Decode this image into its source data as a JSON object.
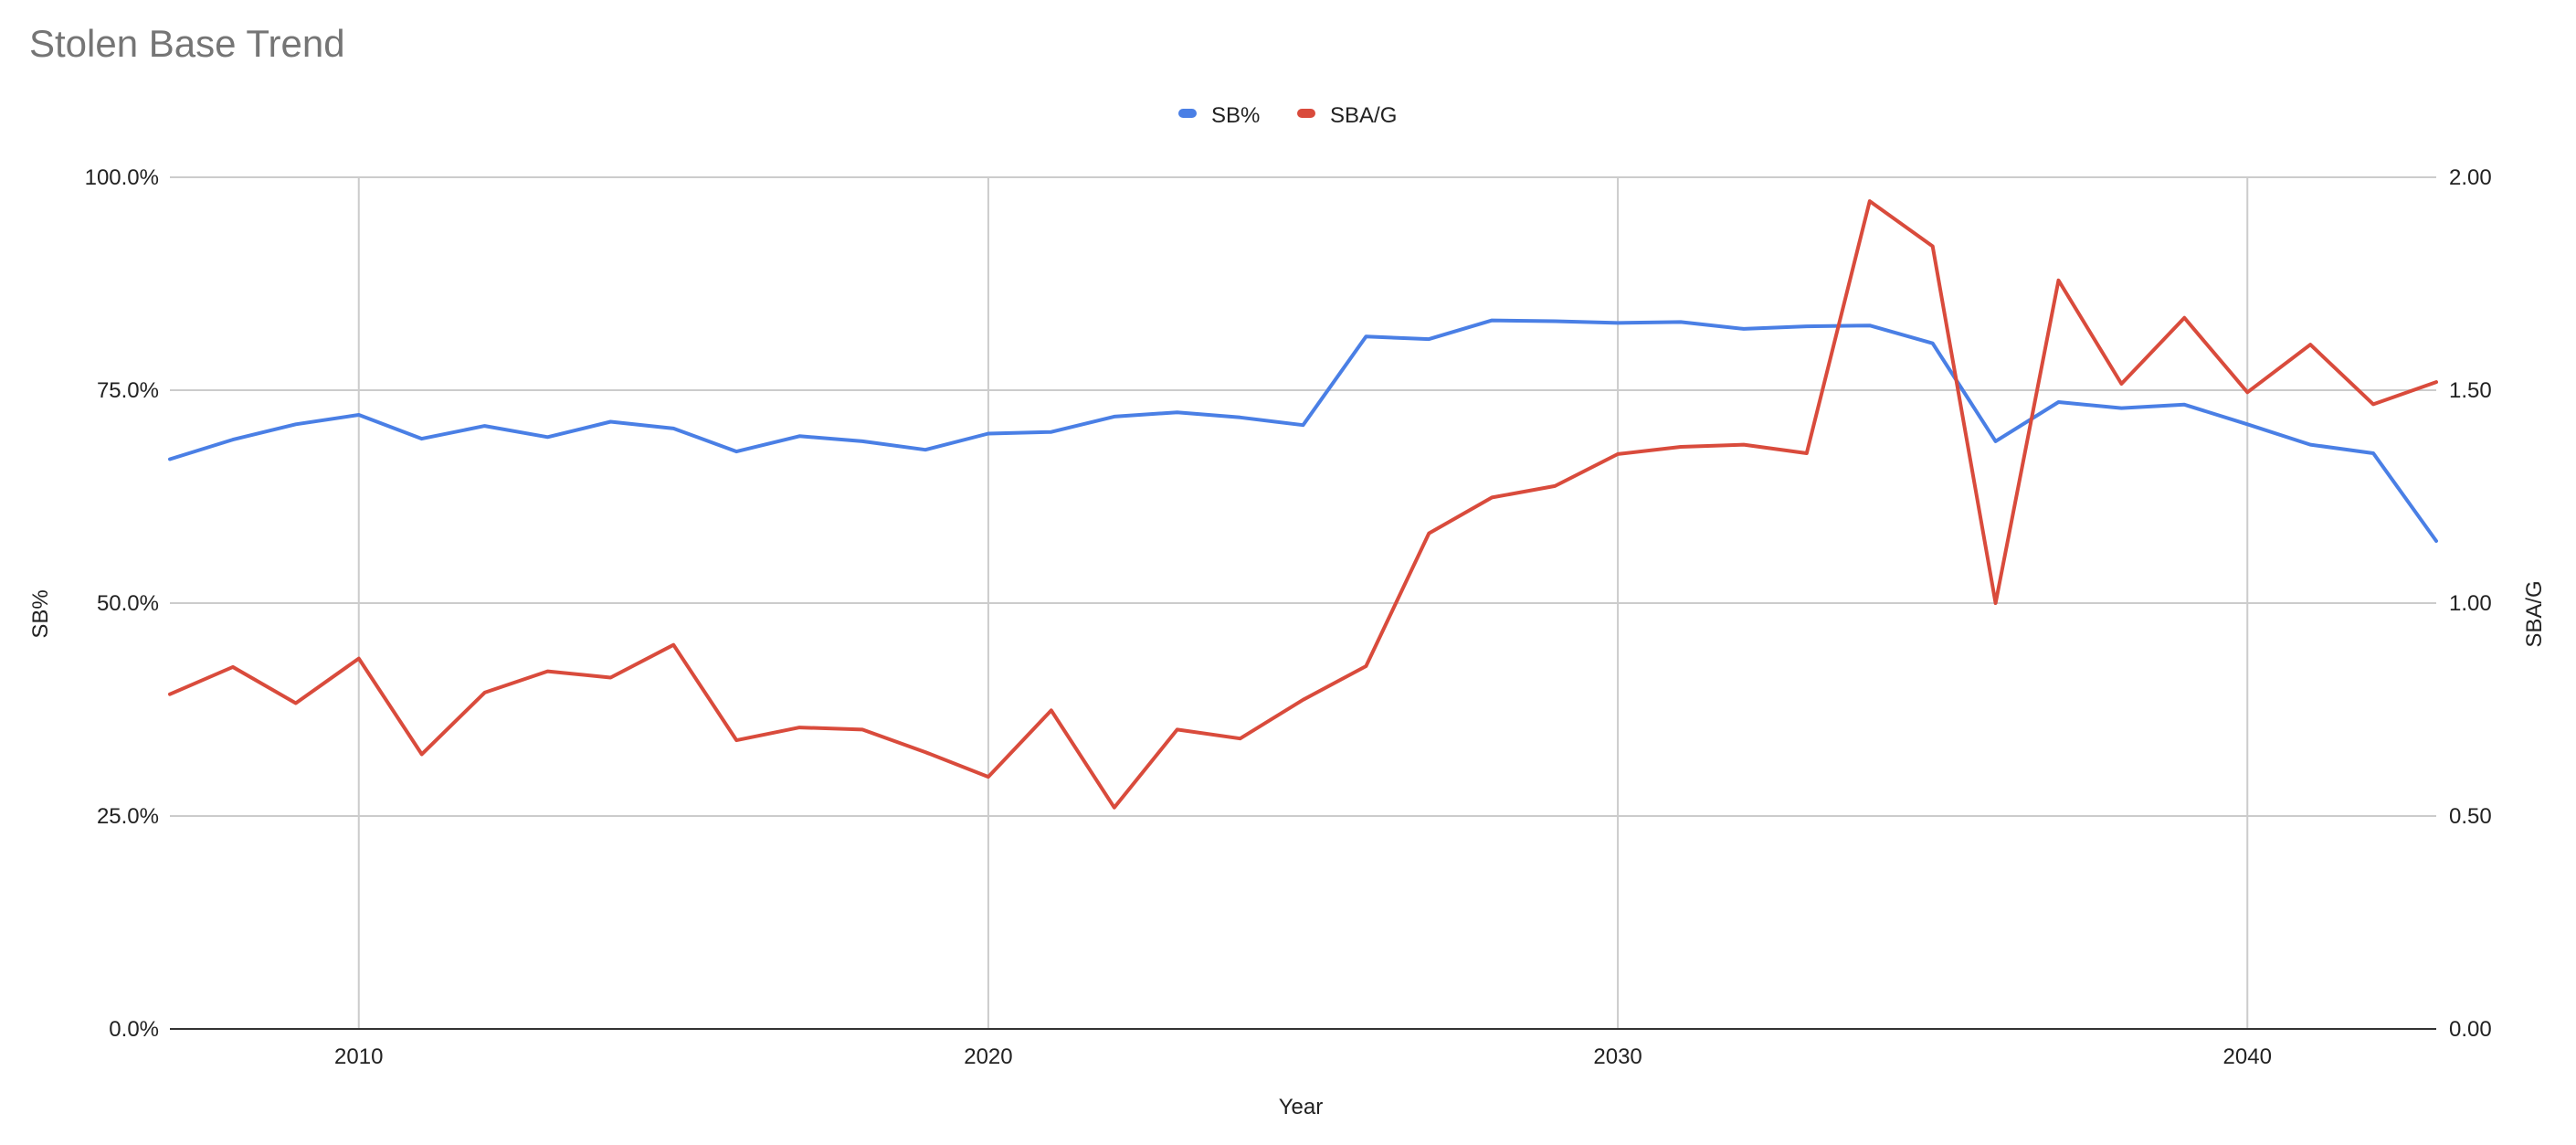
{
  "chart_data": {
    "type": "line",
    "title": "Stolen Base Trend",
    "xlabel": "Year",
    "ylabel_left": "SB%",
    "ylabel_right": "SBA/G",
    "legend_position": "top-center",
    "xlim": [
      2007,
      2043
    ],
    "x_ticks": [
      2010,
      2020,
      2030,
      2040
    ],
    "ylim_left": [
      0,
      1.0
    ],
    "y_ticks_left": [
      "0.0%",
      "25.0%",
      "50.0%",
      "75.0%",
      "100.0%"
    ],
    "ylim_right": [
      0,
      2.0
    ],
    "y_ticks_right": [
      "0.00",
      "0.50",
      "1.00",
      "1.50",
      "2.00"
    ],
    "grid": true,
    "x": [
      2007,
      2008,
      2009,
      2010,
      2011,
      2012,
      2013,
      2014,
      2015,
      2016,
      2017,
      2018,
      2019,
      2020,
      2021,
      2022,
      2023,
      2024,
      2025,
      2026,
      2027,
      2028,
      2029,
      2030,
      2031,
      2032,
      2033,
      2034,
      2035,
      2036,
      2037,
      2038,
      2039,
      2040,
      2041,
      2042,
      2043
    ],
    "series": [
      {
        "name": "SB%",
        "axis": "left",
        "color": "#4a7fe5",
        "values": [
          0.669,
          0.692,
          0.71,
          0.721,
          0.693,
          0.708,
          0.695,
          0.713,
          0.705,
          0.678,
          0.696,
          0.69,
          0.68,
          0.699,
          0.701,
          0.719,
          0.724,
          0.718,
          0.709,
          0.813,
          0.81,
          0.832,
          0.831,
          0.829,
          0.83,
          0.822,
          0.825,
          0.826,
          0.805,
          0.69,
          0.736,
          0.729,
          0.733,
          0.71,
          0.686,
          0.676,
          0.573
        ]
      },
      {
        "name": "SBA/G",
        "axis": "right",
        "color": "#d94b3c",
        "values": [
          0.786,
          0.85,
          0.765,
          0.87,
          0.645,
          0.79,
          0.84,
          0.825,
          0.902,
          0.678,
          0.708,
          0.703,
          0.65,
          0.592,
          0.748,
          0.52,
          0.703,
          0.682,
          0.773,
          0.852,
          1.164,
          1.248,
          1.275,
          1.35,
          1.367,
          1.372,
          1.352,
          1.944,
          1.838,
          1.0,
          1.758,
          1.515,
          1.67,
          1.495,
          1.607,
          1.467,
          1.519
        ]
      }
    ]
  }
}
